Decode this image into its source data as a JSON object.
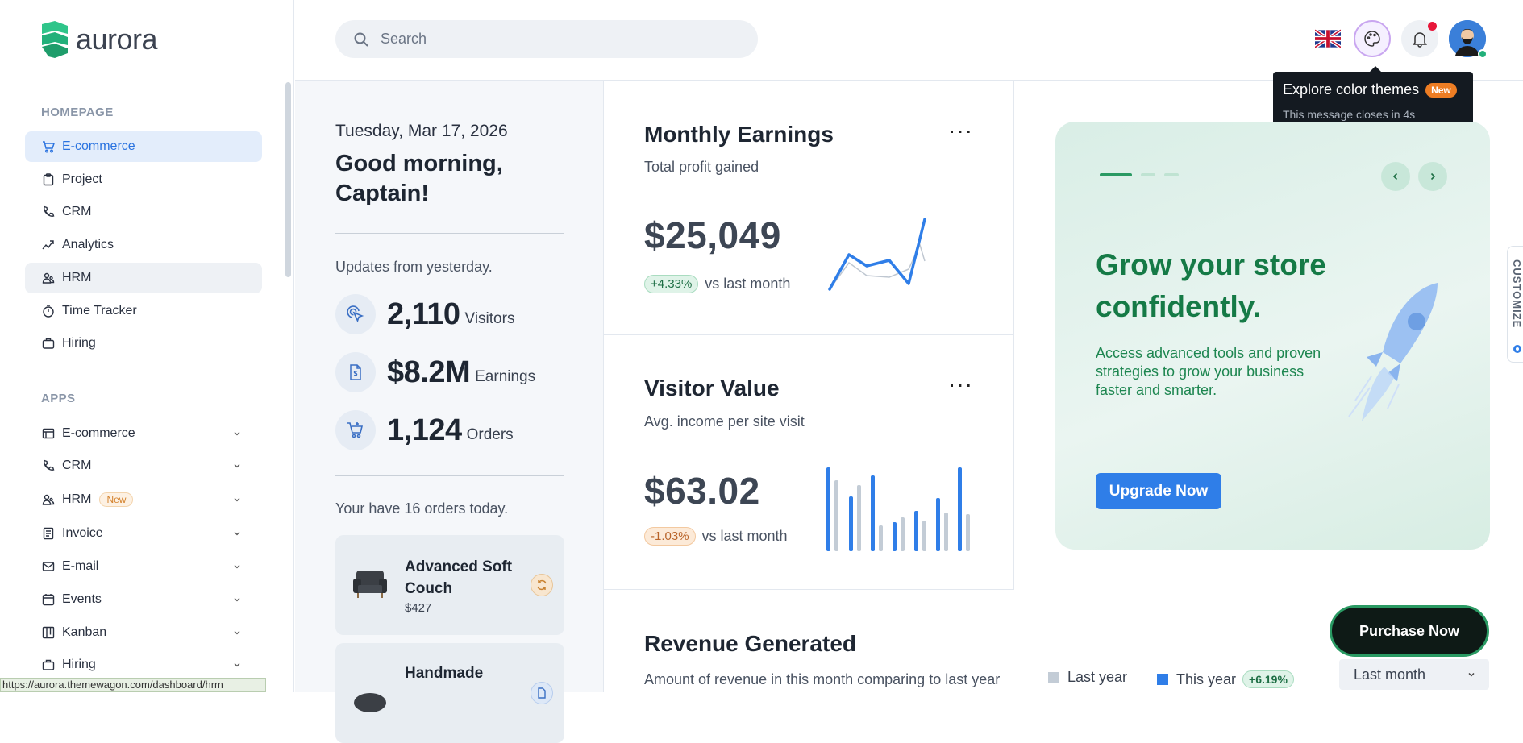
{
  "brand": {
    "name": "aurora"
  },
  "sidebar": {
    "homepage_title": "HOMEPAGE",
    "homepage_items": [
      {
        "label": "E-commerce",
        "icon": "cart-icon"
      },
      {
        "label": "Project",
        "icon": "clipboard-icon"
      },
      {
        "label": "CRM",
        "icon": "phone-icon"
      },
      {
        "label": "Analytics",
        "icon": "analytics-icon"
      },
      {
        "label": "HRM",
        "icon": "users-icon"
      },
      {
        "label": "Time Tracker",
        "icon": "timer-icon"
      },
      {
        "label": "Hiring",
        "icon": "briefcase-icon"
      }
    ],
    "apps_title": "APPS",
    "apps_items": [
      {
        "label": "E-commerce",
        "icon": "store-icon"
      },
      {
        "label": "CRM",
        "icon": "phone-icon"
      },
      {
        "label": "HRM",
        "icon": "users-icon",
        "badge": "New"
      },
      {
        "label": "Invoice",
        "icon": "invoice-icon"
      },
      {
        "label": "E-mail",
        "icon": "mail-icon"
      },
      {
        "label": "Events",
        "icon": "calendar-icon"
      },
      {
        "label": "Kanban",
        "icon": "kanban-icon"
      },
      {
        "label": "Hiring",
        "icon": "briefcase-icon"
      }
    ]
  },
  "status_url": "https://aurora.themewagon.com/dashboard/hrm",
  "topbar": {
    "search_placeholder": "Search"
  },
  "tooltip": {
    "title": "Explore color themes",
    "badge": "New",
    "message": "This message closes in 4s"
  },
  "greeting": {
    "date": "Tuesday, Mar 17, 2026",
    "line1": "Good morning,",
    "line2": "Captain!",
    "updates_title": "Updates from yesterday.",
    "stats": [
      {
        "value": "2,110",
        "label": "Visitors"
      },
      {
        "value": "$8.2M",
        "label": "Earnings"
      },
      {
        "value": "1,124",
        "label": "Orders"
      }
    ],
    "orders_text": "Your have 16 orders today.",
    "products": [
      {
        "name": "Advanced Soft Couch",
        "price": "$427"
      },
      {
        "name": "Handmade",
        "price": ""
      }
    ]
  },
  "monthly": {
    "title": "Monthly Earnings",
    "subtitle": "Total profit gained",
    "value": "$25,049",
    "change": "+4.33%",
    "vs": "vs last month"
  },
  "visitor": {
    "title": "Visitor Value",
    "subtitle": "Avg. income per site visit",
    "value": "$63.02",
    "change": "-1.03%",
    "vs": "vs last month"
  },
  "promo": {
    "title": "Grow your store confidently.",
    "body": "Access advanced tools and proven strategies to grow your business faster and smarter.",
    "button": "Upgrade Now"
  },
  "customize_label": "CUSTOMIZE",
  "purchase_label": "Purchase Now",
  "revenue": {
    "title": "Revenue Generated",
    "subtitle": "Amount of revenue in this month comparing to last year",
    "legend_last": "Last year",
    "legend_this": "This year",
    "change": "+6.19%",
    "period": "Last month"
  },
  "colors": {
    "accent": "#2f7ee8",
    "brand_green": "#157a46",
    "bar_gray": "#c3ccd6",
    "notification": "#e8173a"
  }
}
